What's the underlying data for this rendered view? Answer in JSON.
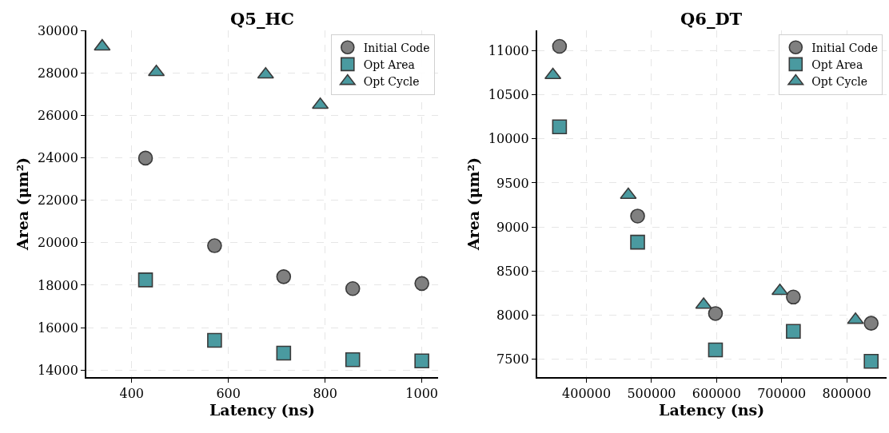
{
  "chart_data": [
    {
      "type": "scatter",
      "title": "Q5_HC",
      "xlabel": "Latency (ns)",
      "ylabel": "Area (μm²)",
      "xlim": [
        306,
        1034
      ],
      "ylim": [
        13675,
        30000
      ],
      "xticks": [
        400,
        600,
        800,
        1000
      ],
      "yticks": [
        14000,
        16000,
        18000,
        20000,
        22000,
        24000,
        26000,
        28000,
        30000
      ],
      "grid": true,
      "legend": "top right",
      "series": [
        {
          "name": "Initial Code",
          "color": "#808080",
          "marker": "circle",
          "x": [
            428.6,
            571.4,
            714.3,
            857.1,
            1000
          ],
          "values": [
            23990,
            19860,
            18400,
            17840,
            18080
          ]
        },
        {
          "name": "Opt Area",
          "color": "#4a9aa0",
          "marker": "square",
          "x": [
            428.6,
            571.4,
            714.3,
            857.1,
            1000
          ],
          "values": [
            18250,
            15400,
            14800,
            14490,
            14430
          ]
        },
        {
          "name": "Opt Cycle",
          "color": "#4a9aa0",
          "marker": "triangle",
          "x": [
            339,
            451,
            677,
            790
          ],
          "values": [
            29250,
            28040,
            27930,
            26500
          ]
        }
      ]
    },
    {
      "type": "scatter",
      "title": "Q6_DT",
      "xlabel": "Latency (ns)",
      "ylabel": "Area (μm²)",
      "xlim": [
        323900,
        860900
      ],
      "ylim": [
        7298,
        11229
      ],
      "xticks": [
        400000,
        500000,
        600000,
        700000,
        800000
      ],
      "yticks": [
        7500,
        8000,
        8500,
        9000,
        9500,
        10000,
        10500,
        11000
      ],
      "grid": true,
      "legend": "top right",
      "series": [
        {
          "name": "Initial Code",
          "color": "#808080",
          "marker": "circle",
          "x": [
            358600,
            478600,
            598300,
            718000,
            837600
          ],
          "values": [
            11050,
            9124,
            8018,
            8205,
            7907
          ]
        },
        {
          "name": "Opt Area",
          "color": "#4a9aa0",
          "marker": "square",
          "x": [
            358600,
            478600,
            598300,
            718000,
            837600
          ],
          "values": [
            10136,
            8828,
            7605,
            7816,
            7476
          ]
        },
        {
          "name": "Opt Cycle",
          "color": "#4a9aa0",
          "marker": "triangle",
          "x": [
            348400,
            464300,
            580100,
            697300,
            813500
          ],
          "values": [
            10723,
            9364,
            8117,
            8274,
            7946
          ]
        }
      ]
    }
  ]
}
